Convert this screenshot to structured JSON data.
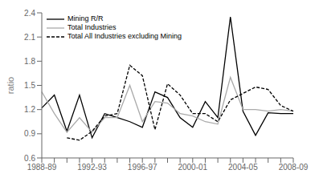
{
  "chart_data": {
    "type": "line",
    "categories": [
      "1988-89",
      null,
      null,
      null,
      "1992-93",
      null,
      null,
      null,
      "1996-97",
      null,
      null,
      null,
      "2000-01",
      null,
      null,
      null,
      "2004-05",
      null,
      null,
      null,
      "2008-09"
    ],
    "series": [
      {
        "name": "Mining R/R",
        "color": "#000000",
        "line_style": "solid",
        "values": [
          1.22,
          1.38,
          0.93,
          1.38,
          0.85,
          1.15,
          1.1,
          1.05,
          0.98,
          1.42,
          1.35,
          1.1,
          0.98,
          1.3,
          1.1,
          2.35,
          1.18,
          0.88,
          1.16,
          1.15,
          1.15
        ]
      },
      {
        "name": "Total Industries",
        "color": "#aaaaaa",
        "line_style": "solid",
        "values": [
          1.42,
          1.15,
          0.92,
          1.1,
          0.92,
          1.1,
          1.1,
          1.5,
          1.05,
          1.3,
          1.28,
          1.15,
          1.12,
          1.05,
          1.02,
          1.6,
          1.2,
          1.2,
          1.18,
          1.2,
          1.18
        ]
      },
      {
        "name": "Total All Industries excluding Mining",
        "color": "#000000",
        "line_style": "dashed",
        "values": [
          null,
          null,
          0.85,
          0.82,
          0.93,
          1.12,
          1.15,
          1.75,
          1.62,
          0.95,
          1.52,
          1.38,
          1.15,
          1.15,
          1.05,
          1.32,
          1.4,
          1.48,
          1.45,
          1.25,
          1.18
        ]
      }
    ],
    "ylabel": "ratio",
    "ylim": [
      0.6,
      2.4
    ],
    "yticks": [
      0.6,
      0.9,
      1.2,
      1.5,
      1.8,
      2.1,
      2.4
    ],
    "legend": "upper left",
    "grid": false
  }
}
